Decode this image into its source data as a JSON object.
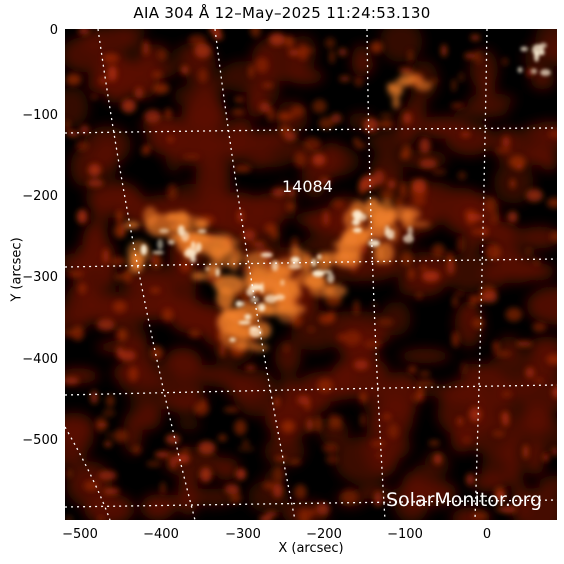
{
  "title": "AIA 304 Å 12–May–2025 11:24:53.130",
  "axes": {
    "xlabel": "X (arcsec)",
    "ylabel": "Y (arcsec)",
    "xticks": [
      "−500",
      "−400",
      "−300",
      "−200",
      "−100",
      "0"
    ],
    "yticks": [
      "0",
      "−100",
      "−200",
      "−300",
      "−400",
      "−500"
    ]
  },
  "region_label": "14084",
  "credit": "SolarMonitor.org",
  "colors": {
    "background": "#000000",
    "dim": "#5a0c00",
    "mid": "#b0300a",
    "bright": "#f0802a",
    "hot": "#fff2d8",
    "grid": "#ffffff"
  }
}
